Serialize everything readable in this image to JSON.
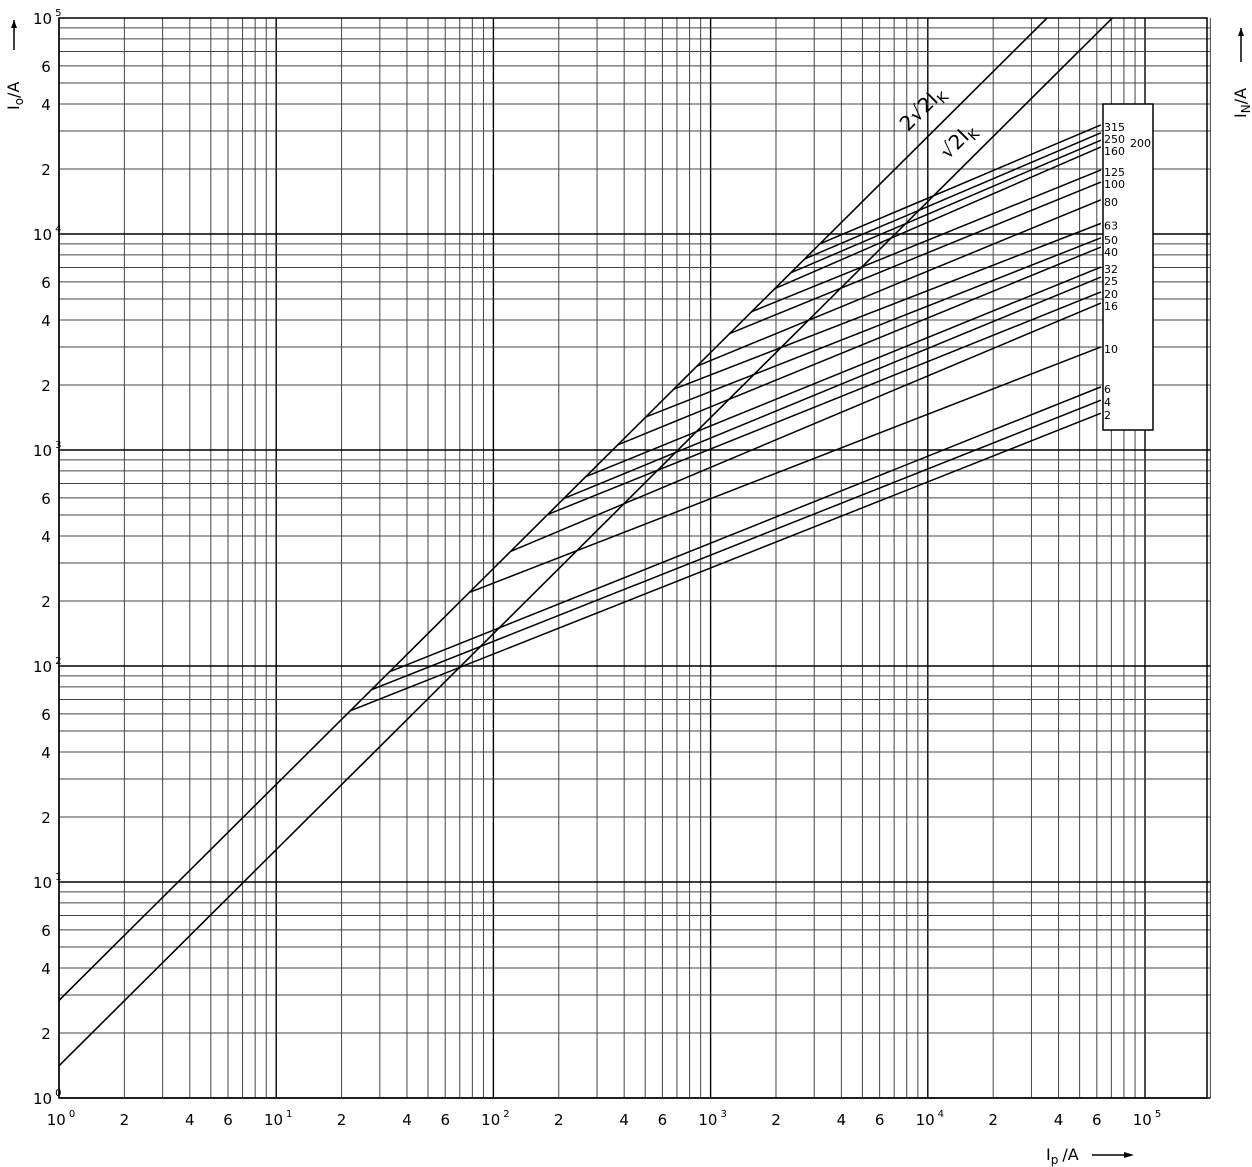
{
  "chart_data": {
    "type": "line",
    "xscale": "log",
    "yscale": "log",
    "xlim": [
      1,
      200000
    ],
    "ylim": [
      1,
      100000
    ],
    "grid": true,
    "xlabel": {
      "main": "I",
      "sub": "p",
      "unit": "/A"
    },
    "ylabel": {
      "main": "I",
      "sub": "o",
      "unit": "/A"
    },
    "y2label": {
      "main": "I",
      "sub": "N",
      "unit": "/A"
    },
    "x_ticks": [
      {
        "value": 1,
        "base": "10",
        "exp": "0"
      },
      {
        "value": 2,
        "base": "2"
      },
      {
        "value": 4,
        "base": "4"
      },
      {
        "value": 6,
        "base": "6"
      },
      {
        "value": 10,
        "base": "10",
        "exp": "1"
      },
      {
        "value": 20,
        "base": "2"
      },
      {
        "value": 40,
        "base": "4"
      },
      {
        "value": 60,
        "base": "6"
      },
      {
        "value": 100,
        "base": "10",
        "exp": "2"
      },
      {
        "value": 200,
        "base": "2"
      },
      {
        "value": 400,
        "base": "4"
      },
      {
        "value": 600,
        "base": "6"
      },
      {
        "value": 1000,
        "base": "10",
        "exp": "3"
      },
      {
        "value": 2000,
        "base": "2"
      },
      {
        "value": 4000,
        "base": "4"
      },
      {
        "value": 6000,
        "base": "6"
      },
      {
        "value": 10000,
        "base": "10",
        "exp": "4"
      },
      {
        "value": 20000,
        "base": "2"
      },
      {
        "value": 40000,
        "base": "4"
      },
      {
        "value": 60000,
        "base": "6"
      },
      {
        "value": 100000,
        "base": "10",
        "exp": "5"
      }
    ],
    "y_ticks": [
      {
        "value": 1,
        "base": "10",
        "exp": "0"
      },
      {
        "value": 2,
        "base": "2"
      },
      {
        "value": 4,
        "base": "4"
      },
      {
        "value": 6,
        "base": "6"
      },
      {
        "value": 10,
        "base": "10",
        "exp": "1"
      },
      {
        "value": 20,
        "base": "2"
      },
      {
        "value": 40,
        "base": "4"
      },
      {
        "value": 60,
        "base": "6"
      },
      {
        "value": 100,
        "base": "10",
        "exp": "2"
      },
      {
        "value": 200,
        "base": "2"
      },
      {
        "value": 400,
        "base": "4"
      },
      {
        "value": 600,
        "base": "6"
      },
      {
        "value": 1000,
        "base": "10",
        "exp": "3"
      },
      {
        "value": 2000,
        "base": "2"
      },
      {
        "value": 4000,
        "base": "4"
      },
      {
        "value": 6000,
        "base": "6"
      },
      {
        "value": 10000,
        "base": "10",
        "exp": "4"
      },
      {
        "value": 20000,
        "base": "2"
      },
      {
        "value": 40000,
        "base": "4"
      },
      {
        "value": 60000,
        "base": "6"
      },
      {
        "value": 100000,
        "base": "10",
        "exp": "5"
      }
    ],
    "envelopes": [
      {
        "name": "2√2 I_K",
        "label_main": "2√2I",
        "label_sub": "K",
        "points": [
          [
            1,
            2.83
          ],
          [
            35400,
            100000
          ]
        ]
      },
      {
        "name": "√2 I_K",
        "label_main": "√2I",
        "label_sub": "K",
        "points": [
          [
            1,
            1.41
          ],
          [
            70700,
            100000
          ]
        ]
      }
    ],
    "series": [
      {
        "name": "315",
        "points": [
          [
            3177,
            8990
          ],
          [
            62700,
            32000
          ]
        ]
      },
      {
        "name": "250",
        "points": [
          [
            2713,
            7670
          ],
          [
            62700,
            29400
          ]
        ]
      },
      {
        "name": "200",
        "points": [
          [
            2338,
            6610
          ],
          [
            62700,
            27200
          ]
        ]
      },
      {
        "name": "160",
        "points": [
          [
            1972,
            5580
          ],
          [
            62700,
            25300
          ]
        ]
      },
      {
        "name": "125",
        "points": [
          [
            1546,
            4370
          ],
          [
            62700,
            19800
          ]
        ]
      },
      {
        "name": "100",
        "points": [
          [
            1224,
            3460
          ],
          [
            62700,
            17400
          ]
        ]
      },
      {
        "name": "80",
        "points": [
          [
            862,
            2440
          ],
          [
            62700,
            14400
          ]
        ]
      },
      {
        "name": "63",
        "points": [
          [
            675,
            1910
          ],
          [
            62700,
            11200
          ]
        ]
      },
      {
        "name": "50",
        "points": [
          [
            502,
            1420
          ],
          [
            62700,
            9600
          ]
        ]
      },
      {
        "name": "40",
        "points": [
          [
            373,
            1055
          ],
          [
            62700,
            8700
          ]
        ]
      },
      {
        "name": "32",
        "points": [
          [
            266,
            752
          ],
          [
            62700,
            7030
          ]
        ]
      },
      {
        "name": "25",
        "points": [
          [
            210,
            595
          ],
          [
            62700,
            6320
          ]
        ]
      },
      {
        "name": "20",
        "points": [
          [
            177,
            502
          ],
          [
            62700,
            5390
          ]
        ]
      },
      {
        "name": "16",
        "points": [
          [
            120,
            339
          ],
          [
            62700,
            4790
          ]
        ]
      },
      {
        "name": "10",
        "points": [
          [
            77.5,
            219
          ],
          [
            62700,
            3000
          ]
        ]
      },
      {
        "name": "6",
        "points": [
          [
            33.2,
            94
          ],
          [
            62700,
            1960
          ]
        ]
      },
      {
        "name": "4",
        "points": [
          [
            27.4,
            77.6
          ],
          [
            62700,
            1700
          ]
        ]
      },
      {
        "name": "2",
        "points": [
          [
            21.9,
            62
          ],
          [
            62700,
            1480
          ]
        ]
      }
    ]
  }
}
